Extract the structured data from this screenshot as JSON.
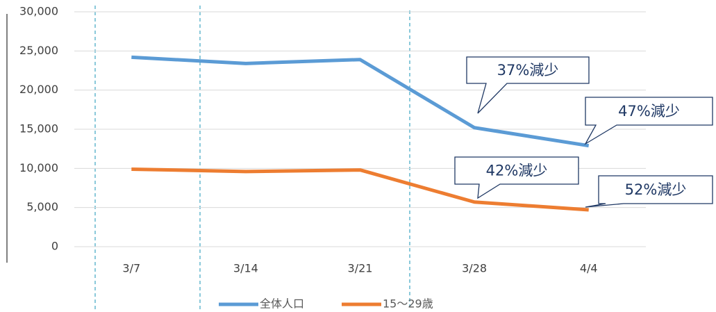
{
  "chart_data": {
    "type": "line",
    "categories": [
      "3/7",
      "3/14",
      "3/21",
      "3/28",
      "4/4"
    ],
    "series": [
      {
        "name": "全体人口",
        "color": "#5b9bd5",
        "values": [
          24200,
          23400,
          23900,
          15200,
          12900
        ]
      },
      {
        "name": "15～29歳",
        "color": "#ed7d31",
        "values": [
          9900,
          9600,
          9800,
          5700,
          4700
        ]
      }
    ],
    "ylim": [
      0,
      30000
    ],
    "yticks": [
      0,
      {
        "value": 5000,
        "label": "5,000"
      },
      {
        "value": 10000,
        "label": "10,000"
      },
      {
        "value": 15000,
        "label": "15,000"
      },
      {
        "value": 20000,
        "label": "20,000"
      },
      {
        "value": 25000,
        "label": "25,000"
      },
      {
        "value": 30000,
        "label": "30,000"
      }
    ],
    "grid": true,
    "legend": "bottom",
    "annotations": [
      {
        "text": "37%減少"
      },
      {
        "text": "47%減少"
      },
      {
        "text": "42%減少"
      },
      {
        "text": "52%減少"
      }
    ]
  }
}
